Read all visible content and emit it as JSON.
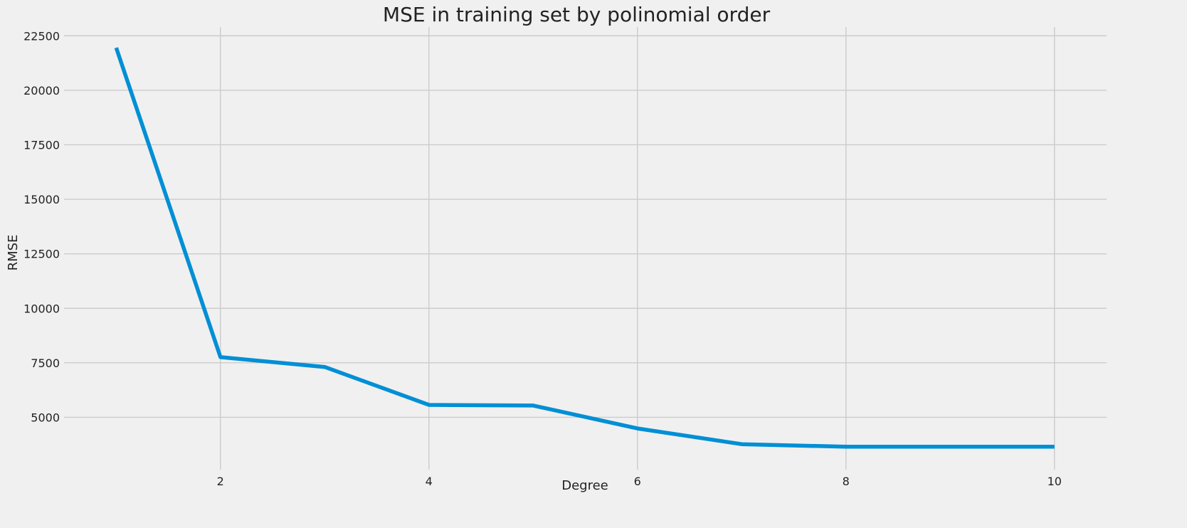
{
  "chart_data": {
    "type": "line",
    "title": "MSE in training set by polinomial order",
    "xlabel": "Degree",
    "ylabel": "RMSE",
    "x_ticks": [
      2,
      4,
      6,
      8,
      10
    ],
    "y_ticks": [
      5000,
      7500,
      10000,
      12500,
      15000,
      17500,
      20000,
      22500
    ],
    "xlim": [
      0.5,
      10.5
    ],
    "ylim": [
      2600,
      22900
    ],
    "grid": true,
    "series": [
      {
        "x": [
          1,
          2,
          3,
          4,
          5,
          6,
          7,
          8,
          9,
          10
        ],
        "values": [
          21950,
          7760,
          7310,
          5570,
          5540,
          4490,
          3770,
          3650,
          3650,
          3650
        ],
        "color": "#008fd5"
      }
    ]
  }
}
